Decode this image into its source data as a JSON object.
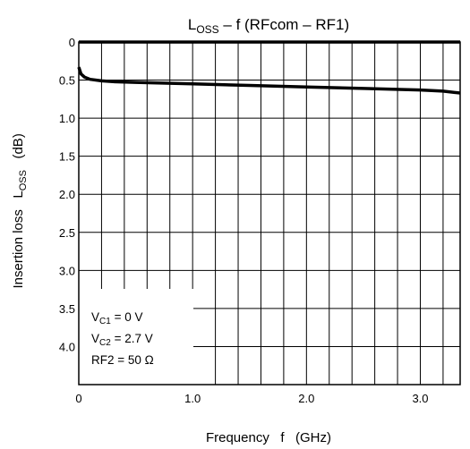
{
  "chart_data": {
    "type": "line",
    "title": {
      "main": "L",
      "sub": "OSS",
      "rest": " – f (RFcom – RF1)"
    },
    "xlabel": "Frequency   f   (GHz)",
    "ylabel": {
      "main": "Insertion loss   L",
      "sub": "OSS",
      "rest": "   (dB)"
    },
    "xlim": [
      0,
      3.35
    ],
    "ylim": [
      0,
      4.5
    ],
    "y_inverted": true,
    "grid": true,
    "x_ticks": [
      "0",
      "1.0",
      "2.0",
      "3.0"
    ],
    "y_ticks": [
      "0",
      "0.5",
      "1.0",
      "1.5",
      "2.0",
      "2.5",
      "3.0",
      "3.5",
      "4.0"
    ],
    "series": [
      {
        "x": [
          0,
          0.5,
          1.0,
          1.5,
          2.0,
          2.5,
          3.0,
          3.35
        ],
        "y": [
          0,
          0,
          0,
          0,
          0,
          0,
          0,
          0
        ]
      },
      {
        "x": [
          0,
          0.02,
          0.05,
          0.1,
          0.2,
          0.3,
          0.5,
          1.0,
          1.5,
          2.0,
          2.5,
          3.0,
          3.2,
          3.35
        ],
        "y": [
          0.33,
          0.42,
          0.46,
          0.49,
          0.51,
          0.52,
          0.53,
          0.55,
          0.57,
          0.59,
          0.61,
          0.63,
          0.645,
          0.67
        ]
      }
    ],
    "annotation": [
      {
        "main": "V",
        "sub": "C1",
        "rest": " = 0 V"
      },
      {
        "main": "V",
        "sub": "C2",
        "rest": " = 2.7 V"
      },
      {
        "main": "RF2 = 50 Ω",
        "sub": "",
        "rest": ""
      }
    ]
  }
}
